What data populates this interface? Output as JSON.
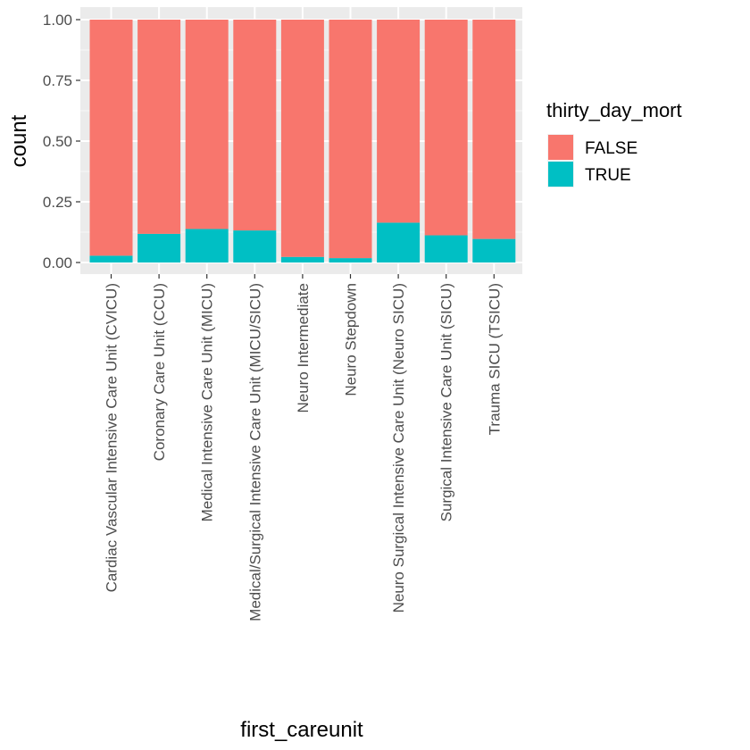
{
  "chart_data": {
    "type": "bar",
    "stacked": true,
    "position": "fill",
    "xlabel": "first_careunit",
    "ylabel": "count",
    "ylim": [
      0,
      1
    ],
    "yticks": [
      "0.00",
      "0.25",
      "0.50",
      "0.75",
      "1.00"
    ],
    "ytick_values": [
      0,
      0.25,
      0.5,
      0.75,
      1
    ],
    "grid": true,
    "legend_position": "right",
    "legend_title": "thirty_day_mort",
    "categories": [
      "Cardiac Vascular Intensive Care Unit (CVICU)",
      "Coronary Care Unit (CCU)",
      "Medical Intensive Care Unit (MICU)",
      "Medical/Surgical Intensive Care Unit (MICU/SICU)",
      "Neuro Intermediate",
      "Neuro Stepdown",
      "Neuro Surgical Intensive Care Unit (Neuro SICU)",
      "Surgical Intensive Care Unit (SICU)",
      "Trauma SICU (TSICU)"
    ],
    "series": [
      {
        "name": "FALSE",
        "color": "#F8766D",
        "values": [
          0.972,
          0.882,
          0.862,
          0.868,
          0.977,
          0.982,
          0.836,
          0.888,
          0.903
        ]
      },
      {
        "name": "TRUE",
        "color": "#00BFC4",
        "values": [
          0.028,
          0.118,
          0.138,
          0.132,
          0.023,
          0.018,
          0.164,
          0.112,
          0.097
        ]
      }
    ]
  }
}
